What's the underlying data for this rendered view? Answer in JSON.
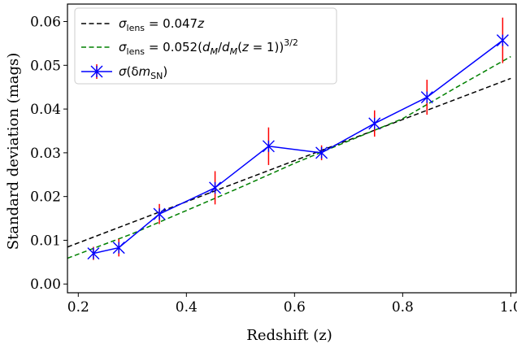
{
  "chart_data": {
    "type": "line",
    "xlabel": "Redshift (z)",
    "ylabel": "Standard deviation (mags)",
    "xlim": [
      0.18,
      1.01
    ],
    "ylim": [
      -0.002,
      0.064
    ],
    "grid": false,
    "legend_position": "top-left",
    "x_ticks": [
      "0.2",
      "0.4",
      "0.6",
      "0.8",
      "1.0"
    ],
    "y_ticks": [
      "0.00",
      "0.01",
      "0.02",
      "0.03",
      "0.04",
      "0.05",
      "0.06"
    ],
    "series": [
      {
        "name": "σ_lens = 0.047z",
        "kind": "dashed-line",
        "color": "#000000",
        "x": [
          0.18,
          1.0
        ],
        "y": [
          0.00846,
          0.047
        ]
      },
      {
        "name": "σ_lens = 0.052(d_M/d_M(z = 1))^{3/2}",
        "kind": "dashed-curve",
        "color": "#008000",
        "x": [
          0.18,
          0.3,
          0.4,
          0.5,
          0.6,
          0.7,
          0.8,
          0.9,
          1.0
        ],
        "y": [
          0.0059,
          0.0115,
          0.0168,
          0.0221,
          0.0276,
          0.0327,
          0.0378,
          0.045,
          0.052
        ]
      },
      {
        "name": "σ(δm_SN)",
        "kind": "line-markers-errorbars",
        "color": "#0000ff",
        "errorbar_color": "#ff0000",
        "x": [
          0.228,
          0.275,
          0.35,
          0.453,
          0.552,
          0.65,
          0.748,
          0.845,
          0.985
        ],
        "y": [
          0.007,
          0.0083,
          0.016,
          0.022,
          0.0315,
          0.03,
          0.0367,
          0.0427,
          0.0557
        ],
        "yerr": [
          0.0015,
          0.002,
          0.0023,
          0.0038,
          0.0043,
          0.0017,
          0.003,
          0.004,
          0.0052
        ]
      }
    ]
  },
  "legend": {
    "items": [
      {
        "prefix": "σ",
        "sub": "lens",
        "rest": " = 0.047",
        "rest_italic": "z",
        "tail": ""
      },
      {
        "prefix": "σ",
        "sub": "lens",
        "rest": " = 0.052(",
        "rest_italic": "d_M/d_M(z = 1)",
        "tail": ")"
      },
      {
        "prefix": "σ",
        "sub": "",
        "rest": "(δ",
        "rest_italic": "m",
        "tail": ""
      }
    ],
    "texts": [
      "σlens = 0.047z",
      "σlens = 0.052(dM/dM(z = 1))3/2",
      "σ(δmSN)"
    ]
  }
}
